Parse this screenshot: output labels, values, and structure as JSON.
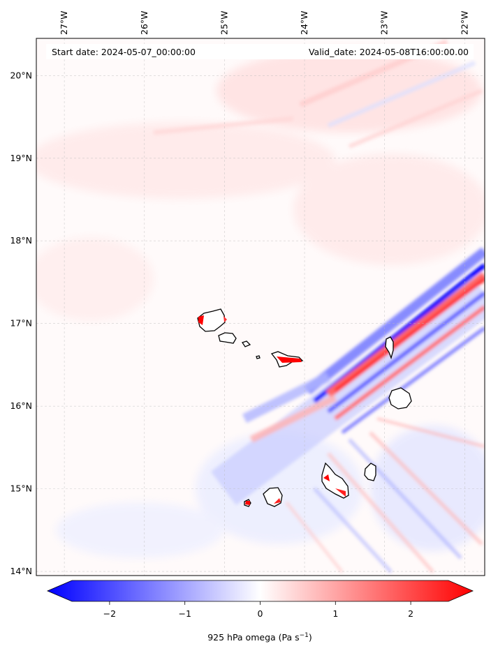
{
  "header": {
    "start_date": "Start date: 2024-05-07_00:00:00",
    "valid_date": "Valid_date: 2024-05-08T16:00:00.00"
  },
  "map": {
    "lon_range": [
      -27.35,
      -21.75
    ],
    "lat_range": [
      13.95,
      20.45
    ],
    "lon_ticks": [
      {
        "value": -27,
        "label": "27°W"
      },
      {
        "value": -26,
        "label": "26°W"
      },
      {
        "value": -25,
        "label": "25°W"
      },
      {
        "value": -24,
        "label": "24°W"
      },
      {
        "value": -23,
        "label": "23°W"
      },
      {
        "value": -22,
        "label": "22°W"
      }
    ],
    "lat_ticks": [
      {
        "value": 20,
        "label": "20°N"
      },
      {
        "value": 19,
        "label": "19°N"
      },
      {
        "value": 18,
        "label": "18°N"
      },
      {
        "value": 17,
        "label": "17°N"
      },
      {
        "value": 16,
        "label": "16°N"
      },
      {
        "value": 15,
        "label": "15°N"
      },
      {
        "value": 14,
        "label": "14°N"
      }
    ],
    "gridlines": true
  },
  "colorbar": {
    "label": "925 hPa omega (Pa s",
    "label_exp": "−1",
    "label_close": ")",
    "range": [
      -2.5,
      2.5
    ],
    "ticks": [
      {
        "value": -2,
        "label": "−2"
      },
      {
        "value": -1,
        "label": "−1"
      },
      {
        "value": 0,
        "label": "0"
      },
      {
        "value": 1,
        "label": "1"
      },
      {
        "value": 2,
        "label": "2"
      }
    ],
    "color_low": "#0000ff",
    "color_mid": "#ffffff",
    "color_high": "#ff0000"
  }
}
